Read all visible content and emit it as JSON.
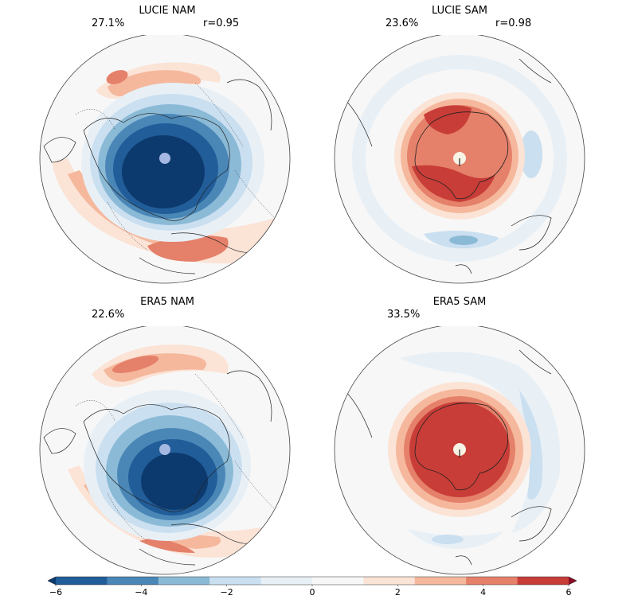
{
  "panels": [
    {
      "id": "lucie_nam",
      "title": "LUCIE NAM",
      "variance": "27.1%",
      "correlation": "r=0.95",
      "hemisphere": "north"
    },
    {
      "id": "lucie_sam",
      "title": "LUCIE SAM",
      "variance": "23.6%",
      "correlation": "r=0.98",
      "hemisphere": "south"
    },
    {
      "id": "era5_nam",
      "title": "ERA5 NAM",
      "variance": "22.6%",
      "correlation": "",
      "hemisphere": "north"
    },
    {
      "id": "era5_sam",
      "title": "ERA5 SAM",
      "variance": "33.5%",
      "correlation": "",
      "hemisphere": "south"
    }
  ],
  "colorbar": {
    "ticks": [
      "−6",
      "−4",
      "−2",
      "0",
      "2",
      "4",
      "6"
    ],
    "range": [
      -6,
      6
    ],
    "colors": [
      "#0d3a6e",
      "#215d99",
      "#4a87b7",
      "#8bbad7",
      "#cadff0",
      "#e8f0f6",
      "#f7f7f7",
      "#fbe3d6",
      "#f5b89d",
      "#e5806a",
      "#c83d37",
      "#8a0d24"
    ]
  }
}
